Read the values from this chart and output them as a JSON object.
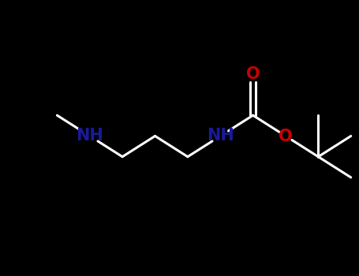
{
  "bg_color": "#000000",
  "bond_color": "#ffffff",
  "N_color": "#1a1a99",
  "O_color": "#cc0000",
  "figsize": [
    4.55,
    3.5
  ],
  "dpi": 100,
  "bond_lw": 2.2,
  "font_size": 15,
  "ang": 30,
  "step": 1.05,
  "xlim": [
    0,
    10
  ],
  "ylim": [
    0,
    7
  ],
  "x_center": 5.0,
  "y_center": 3.6
}
